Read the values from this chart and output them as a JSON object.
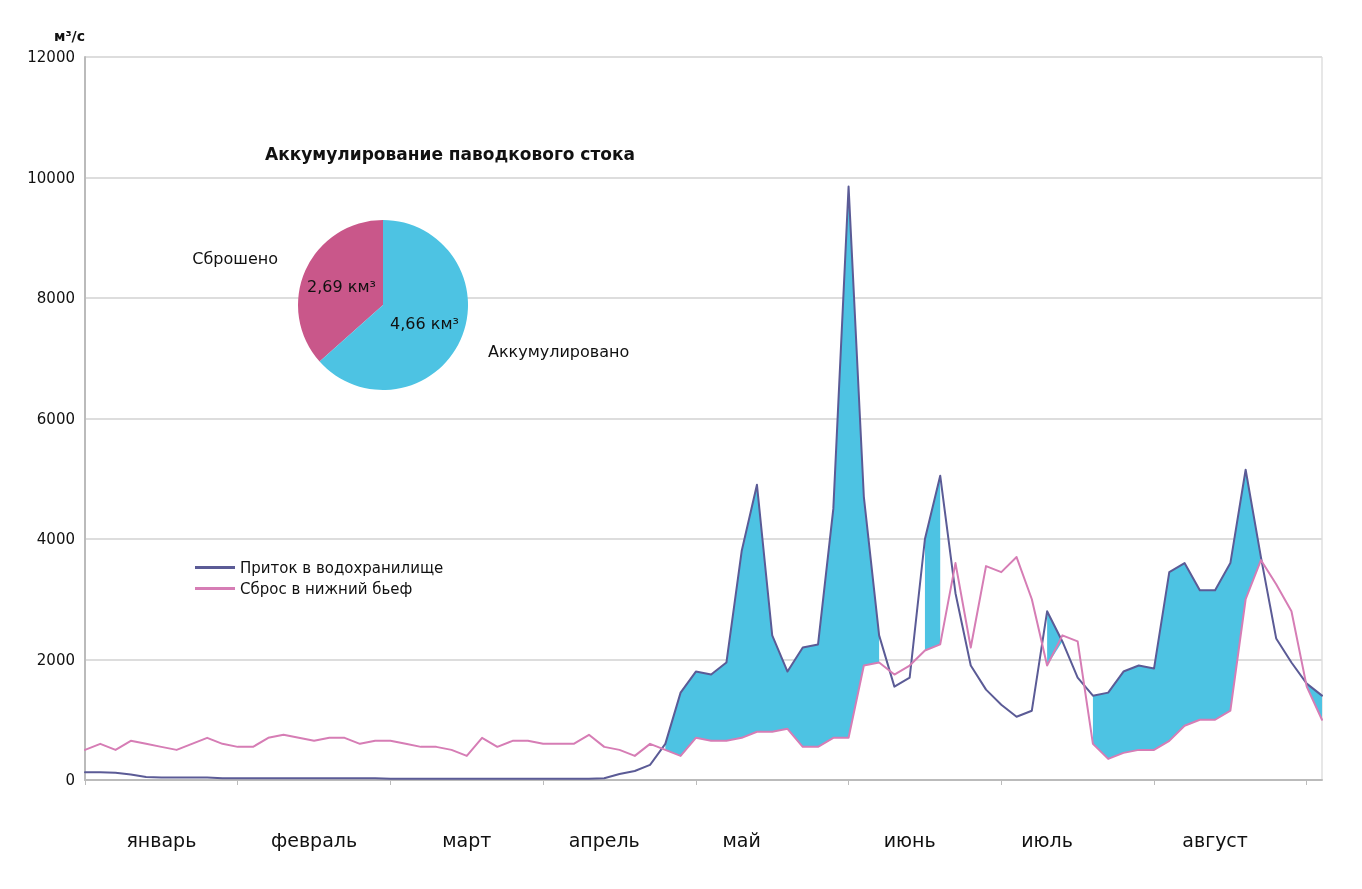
{
  "chart_data": [
    {
      "type": "line",
      "ylabel": "м³/с",
      "categories": [
        null,
        null,
        null,
        null,
        null,
        "январь",
        null,
        null,
        null,
        null,
        null,
        null,
        null,
        null,
        null,
        "февраль",
        null,
        null,
        null,
        null,
        null,
        null,
        null,
        null,
        null,
        "март",
        null,
        null,
        null,
        null,
        null,
        null,
        null,
        null,
        "апрель",
        null,
        null,
        null,
        null,
        null,
        null,
        null,
        null,
        "май",
        null,
        null,
        null,
        null,
        null,
        null,
        null,
        null,
        null,
        null,
        "июнь",
        null,
        null,
        null,
        null,
        null,
        null,
        null,
        null,
        "июль",
        null,
        null,
        null,
        null,
        null,
        null,
        null,
        null,
        null,
        null,
        "август",
        null,
        null,
        null,
        null,
        null,
        null,
        null
      ],
      "ylim": [
        0,
        12000
      ],
      "yticks": [
        0,
        2000,
        4000,
        6000,
        8000,
        10000,
        12000
      ],
      "grid": "y",
      "legend": "left",
      "marker": "none",
      "series": [
        {
          "name": "Приток в водохранилище",
          "type": "line",
          "color": "#5b5b96",
          "values": [
            130,
            130,
            120,
            90,
            50,
            40,
            40,
            40,
            40,
            30,
            30,
            30,
            30,
            30,
            30,
            30,
            30,
            30,
            30,
            30,
            20,
            20,
            20,
            20,
            20,
            20,
            20,
            20,
            20,
            20,
            20,
            20,
            20,
            20,
            30,
            100,
            150,
            250,
            600,
            1450,
            1800,
            1750,
            1950,
            3800,
            4900,
            2400,
            1800,
            2200,
            2250,
            4500,
            9850,
            4700,
            2400,
            1550,
            1700,
            4000,
            5050,
            3100,
            1900,
            1500,
            1250,
            1050,
            1150,
            2800,
            2300,
            1700,
            1400,
            1450,
            1800,
            1900,
            1850,
            3450,
            3600,
            3150,
            3150,
            3600,
            5150,
            3700,
            2350,
            1950,
            1600,
            1400
          ],
          "upper": [
            null,
            null,
            null,
            null,
            null,
            null,
            null,
            null,
            null,
            null,
            null,
            null,
            null,
            null,
            null,
            null,
            null,
            null,
            null,
            null,
            null,
            null,
            null,
            null,
            null,
            null,
            null,
            null,
            null,
            null,
            null,
            null,
            null,
            null,
            null,
            null,
            null,
            null,
            600,
            1450,
            1800,
            1750,
            1950,
            3800,
            4900,
            2400,
            1800,
            2200,
            2250,
            4500,
            9850,
            4700,
            2400,
            null,
            null,
            4000,
            5050,
            null,
            null,
            null,
            null,
            null,
            null,
            2800,
            2300,
            null,
            1400,
            1450,
            1800,
            1900,
            1850,
            3450,
            3600,
            3150,
            3150,
            3600,
            5150,
            3700,
            null,
            null,
            1600,
            1400
          ],
          "lower": [
            null,
            null,
            null,
            null,
            null,
            null,
            null,
            null,
            null,
            null,
            null,
            null,
            null,
            null,
            null,
            null,
            null,
            null,
            null,
            null,
            null,
            null,
            null,
            null,
            null,
            null,
            null,
            null,
            null,
            null,
            null,
            null,
            null,
            null,
            null,
            null,
            null,
            null,
            500,
            400,
            700,
            650,
            650,
            700,
            800,
            800,
            850,
            550,
            550,
            700,
            700,
            1900,
            1950,
            null,
            null,
            2150,
            2250,
            null,
            null,
            null,
            null,
            null,
            null,
            1900,
            2300,
            null,
            600,
            350,
            450,
            500,
            500,
            650,
            900,
            1000,
            1000,
            1150,
            3000,
            3650,
            null,
            null,
            1550,
            1000
          ]
        },
        {
          "name": "Сброс в нижний бьеф",
          "type": "line",
          "color": "#d67db5",
          "values": [
            500,
            600,
            500,
            650,
            600,
            550,
            500,
            600,
            700,
            600,
            550,
            550,
            700,
            750,
            700,
            650,
            700,
            700,
            600,
            650,
            650,
            600,
            550,
            550,
            500,
            400,
            700,
            550,
            650,
            650,
            600,
            600,
            600,
            750,
            550,
            500,
            400,
            600,
            500,
            400,
            700,
            650,
            650,
            700,
            800,
            800,
            850,
            550,
            550,
            700,
            700,
            1900,
            1950,
            1750,
            1900,
            2150,
            2250,
            3600,
            2200,
            3550,
            3450,
            3700,
            3000,
            1900,
            2400,
            2300,
            600,
            350,
            450,
            500,
            500,
            650,
            900,
            1000,
            1000,
            1150,
            3000,
            3650,
            3250,
            2800,
            1550,
            1000
          ]
        }
      ]
    },
    {
      "type": "pie",
      "title": "Аккумулирование паводкового стока",
      "categories": [
        "Сброшено",
        "Аккумулировано"
      ],
      "values": [
        2.69,
        4.66
      ],
      "colors": [
        "#c9578a",
        "#4dc3e3"
      ],
      "value_labels": [
        "2,69 км³",
        "4,66 км³"
      ]
    }
  ]
}
